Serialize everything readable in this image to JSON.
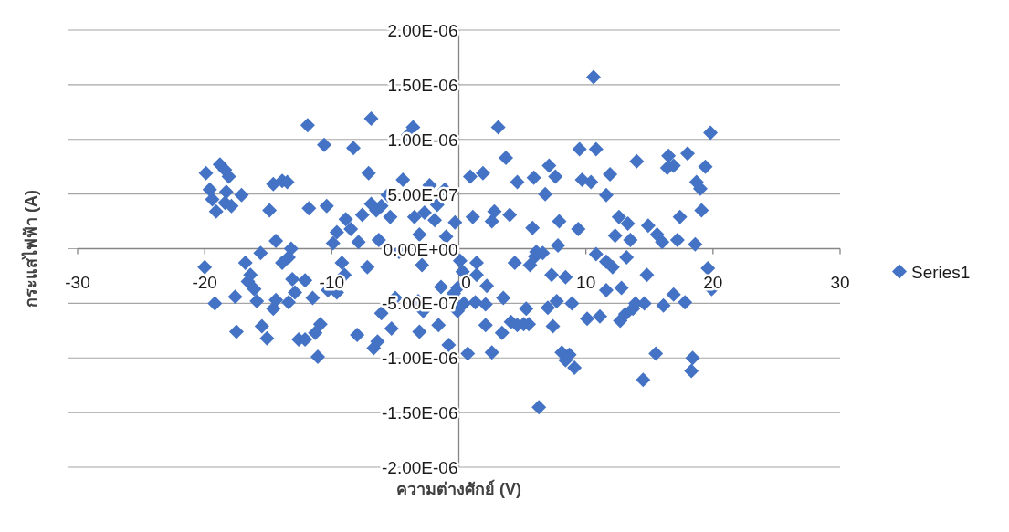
{
  "chart_data": {
    "type": "scatter",
    "xlabel": "ความต่างศักย์ (V)",
    "ylabel": "กระแสไฟฟ้า (A)",
    "xlim": [
      -30,
      30
    ],
    "xticks": [
      -30,
      -20,
      -10,
      0,
      10,
      20,
      30
    ],
    "ylim": [
      -2e-06,
      2e-06
    ],
    "yticks": [
      {
        "value": -2e-06,
        "label": "-2.00E-06"
      },
      {
        "value": -1.5e-06,
        "label": "-1.50E-06"
      },
      {
        "value": -1e-06,
        "label": "-1.00E-06"
      },
      {
        "value": -5e-07,
        "label": "-5.00E-07"
      },
      {
        "value": 0,
        "label": "0.00E+00"
      },
      {
        "value": 5e-07,
        "label": "5.00E-07"
      },
      {
        "value": 1e-06,
        "label": "1.00E-06"
      },
      {
        "value": 1.5e-06,
        "label": "1.50E-06"
      },
      {
        "value": 2e-06,
        "label": "2.00E-06"
      }
    ],
    "grid": "y",
    "legend": "right",
    "marker": "diamond",
    "series": [
      {
        "name": "Series1",
        "color": "#4472c4",
        "x": [
          -19.9,
          -19.6,
          -19.4,
          -19.1,
          -18.8,
          -18.4,
          -18.1,
          -18.3,
          -18.4,
          -17.9,
          -17.1,
          -20,
          -19.2,
          -17.5,
          -17.6,
          -16.8,
          -16.4,
          -16.6,
          -16.1,
          -15.9,
          -15.6,
          -15.5,
          -15.1,
          -14.6,
          -14.4,
          -14.4,
          -14.9,
          -14.6,
          -13.9,
          -13.5,
          -13.9,
          -13.4,
          -13.2,
          -13.4,
          -12.9,
          -12.6,
          -12.1,
          -12.1,
          -11.9,
          -11.8,
          -11.5,
          -11.3,
          -10.9,
          -11.1,
          -10.6,
          -10.4,
          -9.9,
          -9.6,
          -9.6,
          -9.2,
          -9.0,
          -8.9,
          -8.5,
          -8.3,
          -8.0,
          -7.9,
          -7.6,
          -7.1,
          -6.9,
          -7.2,
          -6.7,
          -6.4,
          -6.1,
          -6.3,
          -6.9,
          -6.5,
          -6.1,
          -5.6,
          -5.4,
          -5.3,
          -5.0,
          -4.7,
          -4.4,
          -4.0,
          -3.6,
          -3.5,
          -3.2,
          -3.1,
          -2.9,
          -2.8,
          -3.1,
          -2.7,
          -2.3,
          -1.9,
          -1.7,
          -1.6,
          -1.4,
          -1.0,
          -1.1,
          -0.8,
          -0.4,
          -0.3,
          -0.1,
          0.1,
          0.3,
          -0.1,
          0.4,
          1.4,
          1.4,
          2.2,
          1.3,
          2.1,
          0.7,
          2.1,
          2.6,
          3.5,
          4.4,
          4.1,
          3.4,
          4.6,
          5.1,
          5.5,
          5.3,
          5.6,
          6.0,
          6.6,
          7.0,
          7.7,
          7.3,
          7.4,
          6.3,
          8.4,
          8.1,
          8.4,
          9.1,
          8.7,
          8.9,
          10.1,
          11.1,
          10.8,
          11.6,
          12.1,
          11.6,
          12.8,
          12.7,
          13.1,
          13.7,
          13.9,
          14.6,
          14.8,
          14.5,
          15.5,
          16.1,
          16.9,
          17.8,
          18.3,
          18.4,
          19.6,
          19.9,
          13.2,
          10.6,
          3.1,
          3.7,
          0.9,
          1.9,
          4.6,
          5.9,
          7.1,
          7.6,
          6.8,
          9.5,
          10.8,
          9.7,
          10.4,
          11.9,
          11.6,
          14.0,
          16.5,
          16.4,
          16.9,
          18.0,
          19.8,
          19.4,
          18.7,
          19.0,
          19.1,
          1.1,
          2.8,
          2.6,
          4.0,
          5.8,
          7.9,
          9.4,
          12.6,
          13.3,
          12.3,
          13.5,
          14.9,
          15.6,
          16.0,
          17.2,
          17.4,
          18.6,
          7.8,
          6.1,
          -13.1,
          -10.3
        ],
        "values": [
          6.9e-07,
          5.4e-07,
          4.5e-07,
          3.4e-07,
          7.7e-07,
          7.2e-07,
          6.6e-07,
          5.2e-07,
          4.2e-07,
          3.9e-07,
          4.9e-07,
          -1.7e-07,
          -5e-07,
          -7.6e-07,
          -4.4e-07,
          -1.3e-07,
          -2.4e-07,
          -3e-07,
          -3.7e-07,
          -4.8e-07,
          -4e-08,
          -7.1e-07,
          -8.2e-07,
          -5.5e-07,
          -4.7e-07,
          7e-08,
          3.5e-07,
          5.9e-07,
          6.2e-07,
          6.1e-07,
          -1.3e-07,
          -8e-08,
          0,
          -4.9e-07,
          -4e-07,
          -8.3e-07,
          -8.3e-07,
          -2.9e-07,
          1.13e-06,
          3.7e-07,
          -4.5e-07,
          -7.7e-07,
          -6.9e-07,
          -9.9e-07,
          9.5e-07,
          3.9e-07,
          5e-08,
          1.5e-07,
          -4e-07,
          -1.3e-07,
          -2.4e-07,
          2.7e-07,
          1.8e-07,
          9.2e-07,
          -7.9e-07,
          6e-08,
          3.1e-07,
          6.9e-07,
          1.19e-06,
          -1.7e-07,
          -9.1e-07,
          -8.5e-07,
          -5.9e-07,
          8e-08,
          4.1e-07,
          3.5e-07,
          3.9e-07,
          4.9e-07,
          2.9e-07,
          -7.3e-07,
          -4.5e-07,
          -3e-08,
          6.3e-07,
          1.04e-06,
          1.11e-06,
          2.9e-07,
          -4.8e-07,
          -7.6e-07,
          -1.5e-07,
          -5.7e-07,
          1.3e-07,
          3.3e-07,
          5.8e-07,
          2.6e-07,
          4e-07,
          -7e-07,
          -3.5e-07,
          1.1e-07,
          5.4e-07,
          -8.8e-07,
          -4.1e-07,
          2.4e-07,
          -5.7e-07,
          -1.1e-07,
          -2.1e-07,
          -3.6e-07,
          -5e-07,
          -1.3e-07,
          -2.4e-07,
          -3.4e-07,
          -4.9e-07,
          -5.1e-07,
          -9.6e-07,
          -7e-07,
          -9.5e-07,
          -4.5e-07,
          -1.3e-07,
          -6.7e-07,
          -7.7e-07,
          -7e-07,
          -6.9e-07,
          -6.9e-07,
          -5.5e-07,
          -1.5e-07,
          -7e-08,
          -4e-08,
          -5.4e-07,
          -4.8e-07,
          -2.4e-07,
          -7.1e-07,
          -1.45e-06,
          -2.6e-07,
          -9.5e-07,
          -1.02e-06,
          -1.09e-06,
          -9.7e-07,
          -5e-07,
          -6.4e-07,
          -6.2e-07,
          -5e-08,
          -1.2e-07,
          -1.7e-07,
          -3.8e-07,
          -3.6e-07,
          -6.6e-07,
          -6e-07,
          -5.5e-07,
          -5e-07,
          -5e-07,
          -2.4e-07,
          -1.2e-06,
          -9.6e-07,
          -5.2e-07,
          -4.2e-07,
          -4.9e-07,
          -1.12e-06,
          -1e-06,
          -1.8e-07,
          -3.7e-07,
          -8e-08,
          1.57e-06,
          1.11e-06,
          8.3e-07,
          6.6e-07,
          6.9e-07,
          6.1e-07,
          6.5e-07,
          7.6e-07,
          6.6e-07,
          5e-07,
          9.1e-07,
          9.1e-07,
          6.3e-07,
          6.1e-07,
          6.8e-07,
          4.9e-07,
          8e-07,
          8.5e-07,
          7.4e-07,
          7.6e-07,
          8.7e-07,
          1.06e-06,
          7.5e-07,
          6.1e-07,
          5.5e-07,
          3.5e-07,
          2.9e-07,
          3.4e-07,
          2.5e-07,
          3.1e-07,
          1.9e-07,
          2.5e-07,
          1.8e-07,
          2.9e-07,
          2.3e-07,
          1.2e-07,
          8e-08,
          2.1e-07,
          1.3e-07,
          6e-08,
          8e-08,
          2.9e-07,
          4e-08,
          3e-08,
          -3e-08,
          -2.8e-07,
          -3.8e-07
        ]
      }
    ]
  }
}
